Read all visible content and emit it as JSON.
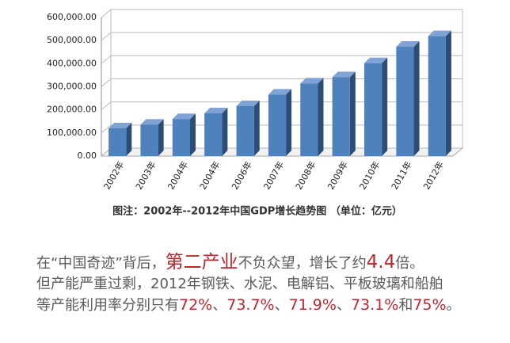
{
  "chart_data": {
    "type": "bar3d",
    "categories": [
      "2002年",
      "2003年",
      "2004年",
      "2004年",
      "2006年",
      "2007年",
      "2008年",
      "2009年",
      "2010年",
      "2011年",
      "2012年"
    ],
    "values": [
      120000,
      136000,
      160000,
      185000,
      216000,
      266000,
      314000,
      341000,
      402000,
      473000,
      519000
    ],
    "color": "#4f81bd",
    "ylim": [
      0,
      600000
    ],
    "yticks": [
      {
        "value": 0,
        "label": "0.00"
      },
      {
        "value": 100000,
        "label": "100,000.00"
      },
      {
        "value": 200000,
        "label": "200,000.00"
      },
      {
        "value": 300000,
        "label": "300,000.00"
      },
      {
        "value": 400000,
        "label": "400,000.00"
      },
      {
        "value": 500000,
        "label": "500,000.00"
      },
      {
        "value": 600000,
        "label": "600,000.00"
      }
    ],
    "grid": true,
    "caption": "图注：2002年--2012年中国GDP增长趋势图 （单位：亿元）"
  },
  "paragraph": {
    "lines": [
      [
        {
          "text": "在“中国奇迹”背后，",
          "highlight": false
        },
        {
          "text": "第二产业",
          "highlight": true
        },
        {
          "text": "不负众望，增长了约",
          "highlight": false
        },
        {
          "text": "4.4",
          "highlight": true
        },
        {
          "text": "倍。",
          "highlight": false
        }
      ],
      [
        {
          "text": "但产能严重过剩，2012年钢铁、水泥、电解铝、平板玻璃和船舶",
          "highlight": false
        }
      ],
      [
        {
          "text": "等产能利用率分别只有",
          "highlight": false
        },
        {
          "text": "72%",
          "highlight": true
        },
        {
          "text": "、",
          "highlight": false
        },
        {
          "text": "73.7%",
          "highlight": true
        },
        {
          "text": "、",
          "highlight": false
        },
        {
          "text": "71.9%",
          "highlight": true
        },
        {
          "text": "、",
          "highlight": false
        },
        {
          "text": "73.1%",
          "highlight": true
        },
        {
          "text": "和",
          "highlight": false
        },
        {
          "text": "75%",
          "highlight": true
        },
        {
          "text": "。",
          "highlight": false
        }
      ]
    ]
  }
}
